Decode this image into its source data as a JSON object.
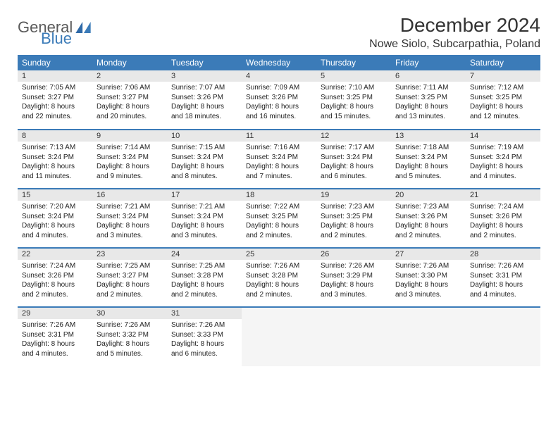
{
  "logo": {
    "part1": "General",
    "part2": "Blue"
  },
  "title": "December 2024",
  "location": "Nowe Siolo, Subcarpathia, Poland",
  "colors": {
    "header_bg": "#3b7bb8",
    "header_fg": "#ffffff",
    "daynum_bg": "#e8e8e8",
    "border": "#3b7bb8",
    "logo_gray": "#5a5a5a",
    "logo_blue": "#3b7bb8"
  },
  "weekdays": [
    "Sunday",
    "Monday",
    "Tuesday",
    "Wednesday",
    "Thursday",
    "Friday",
    "Saturday"
  ],
  "days": [
    {
      "n": 1,
      "sr": "7:05 AM",
      "ss": "3:27 PM",
      "dl": "8 hours and 22 minutes."
    },
    {
      "n": 2,
      "sr": "7:06 AM",
      "ss": "3:27 PM",
      "dl": "8 hours and 20 minutes."
    },
    {
      "n": 3,
      "sr": "7:07 AM",
      "ss": "3:26 PM",
      "dl": "8 hours and 18 minutes."
    },
    {
      "n": 4,
      "sr": "7:09 AM",
      "ss": "3:26 PM",
      "dl": "8 hours and 16 minutes."
    },
    {
      "n": 5,
      "sr": "7:10 AM",
      "ss": "3:25 PM",
      "dl": "8 hours and 15 minutes."
    },
    {
      "n": 6,
      "sr": "7:11 AM",
      "ss": "3:25 PM",
      "dl": "8 hours and 13 minutes."
    },
    {
      "n": 7,
      "sr": "7:12 AM",
      "ss": "3:25 PM",
      "dl": "8 hours and 12 minutes."
    },
    {
      "n": 8,
      "sr": "7:13 AM",
      "ss": "3:24 PM",
      "dl": "8 hours and 11 minutes."
    },
    {
      "n": 9,
      "sr": "7:14 AM",
      "ss": "3:24 PM",
      "dl": "8 hours and 9 minutes."
    },
    {
      "n": 10,
      "sr": "7:15 AM",
      "ss": "3:24 PM",
      "dl": "8 hours and 8 minutes."
    },
    {
      "n": 11,
      "sr": "7:16 AM",
      "ss": "3:24 PM",
      "dl": "8 hours and 7 minutes."
    },
    {
      "n": 12,
      "sr": "7:17 AM",
      "ss": "3:24 PM",
      "dl": "8 hours and 6 minutes."
    },
    {
      "n": 13,
      "sr": "7:18 AM",
      "ss": "3:24 PM",
      "dl": "8 hours and 5 minutes."
    },
    {
      "n": 14,
      "sr": "7:19 AM",
      "ss": "3:24 PM",
      "dl": "8 hours and 4 minutes."
    },
    {
      "n": 15,
      "sr": "7:20 AM",
      "ss": "3:24 PM",
      "dl": "8 hours and 4 minutes."
    },
    {
      "n": 16,
      "sr": "7:21 AM",
      "ss": "3:24 PM",
      "dl": "8 hours and 3 minutes."
    },
    {
      "n": 17,
      "sr": "7:21 AM",
      "ss": "3:24 PM",
      "dl": "8 hours and 3 minutes."
    },
    {
      "n": 18,
      "sr": "7:22 AM",
      "ss": "3:25 PM",
      "dl": "8 hours and 2 minutes."
    },
    {
      "n": 19,
      "sr": "7:23 AM",
      "ss": "3:25 PM",
      "dl": "8 hours and 2 minutes."
    },
    {
      "n": 20,
      "sr": "7:23 AM",
      "ss": "3:26 PM",
      "dl": "8 hours and 2 minutes."
    },
    {
      "n": 21,
      "sr": "7:24 AM",
      "ss": "3:26 PM",
      "dl": "8 hours and 2 minutes."
    },
    {
      "n": 22,
      "sr": "7:24 AM",
      "ss": "3:26 PM",
      "dl": "8 hours and 2 minutes."
    },
    {
      "n": 23,
      "sr": "7:25 AM",
      "ss": "3:27 PM",
      "dl": "8 hours and 2 minutes."
    },
    {
      "n": 24,
      "sr": "7:25 AM",
      "ss": "3:28 PM",
      "dl": "8 hours and 2 minutes."
    },
    {
      "n": 25,
      "sr": "7:26 AM",
      "ss": "3:28 PM",
      "dl": "8 hours and 2 minutes."
    },
    {
      "n": 26,
      "sr": "7:26 AM",
      "ss": "3:29 PM",
      "dl": "8 hours and 3 minutes."
    },
    {
      "n": 27,
      "sr": "7:26 AM",
      "ss": "3:30 PM",
      "dl": "8 hours and 3 minutes."
    },
    {
      "n": 28,
      "sr": "7:26 AM",
      "ss": "3:31 PM",
      "dl": "8 hours and 4 minutes."
    },
    {
      "n": 29,
      "sr": "7:26 AM",
      "ss": "3:31 PM",
      "dl": "8 hours and 4 minutes."
    },
    {
      "n": 30,
      "sr": "7:26 AM",
      "ss": "3:32 PM",
      "dl": "8 hours and 5 minutes."
    },
    {
      "n": 31,
      "sr": "7:26 AM",
      "ss": "3:33 PM",
      "dl": "8 hours and 6 minutes."
    }
  ],
  "labels": {
    "sunrise": "Sunrise:",
    "sunset": "Sunset:",
    "daylight": "Daylight:"
  }
}
